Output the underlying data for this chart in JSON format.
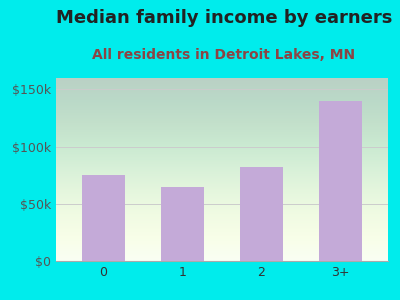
{
  "title": "Median family income by earners",
  "subtitle": "All residents in Detroit Lakes, MN",
  "categories": [
    "0",
    "1",
    "2",
    "3+"
  ],
  "values": [
    75000,
    65000,
    82000,
    140000
  ],
  "bar_color": "#c4aad8",
  "title_color": "#222222",
  "subtitle_color": "#8b4444",
  "background_outer": "#00ecec",
  "yticks": [
    0,
    50000,
    100000,
    150000
  ],
  "ytick_labels": [
    "$0",
    "$50k",
    "$100k",
    "$150k"
  ],
  "ylim": [
    0,
    160000
  ],
  "title_fontsize": 13,
  "subtitle_fontsize": 10,
  "tick_fontsize": 9,
  "grid_color": "#cccccc"
}
